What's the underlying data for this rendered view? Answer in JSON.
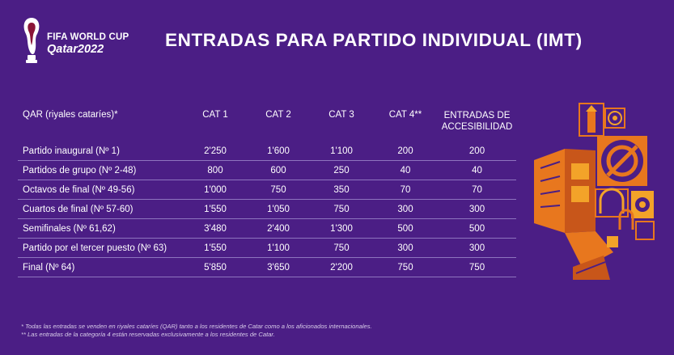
{
  "logo": {
    "line1": "FIFA WORLD CUP",
    "line2": "Qatar2022"
  },
  "title": "ENTRADAS PARA PARTIDO INDIVIDUAL (IMT)",
  "table": {
    "headers": [
      "QAR (riyales cataríes)*",
      "CAT 1",
      "CAT 2",
      "CAT 3",
      "CAT 4**"
    ],
    "acc_header": [
      "ENTRADAS DE",
      "ACCESIBILIDAD"
    ],
    "rows": [
      {
        "label": "Partido inaugural  (Nº 1)",
        "values": [
          "2'250",
          "1'600",
          "1'100",
          "200",
          "200"
        ]
      },
      {
        "label": "Partidos de grupo (Nº 2-48)",
        "values": [
          "800",
          "600",
          "250",
          "40",
          "40"
        ]
      },
      {
        "label": "Octavos de final (Nº 49-56)",
        "values": [
          "1'000",
          "750",
          "350",
          "70",
          "70"
        ]
      },
      {
        "label": "Cuartos de final (Nº 57-60)",
        "values": [
          "1'550",
          "1'050",
          "750",
          "300",
          "300"
        ]
      },
      {
        "label": "Semifinales (Nº 61,62)",
        "values": [
          "3'480",
          "2'400",
          "1'300",
          "500",
          "500"
        ]
      },
      {
        "label": "Partido por el tercer puesto (Nº 63)",
        "values": [
          "1'550",
          "1'100",
          "750",
          "300",
          "300"
        ]
      },
      {
        "label": "Final (Nº 64)",
        "values": [
          "5'850",
          "3'650",
          "2'200",
          "750",
          "750"
        ]
      }
    ]
  },
  "footnotes": [
    "* Todas las entradas se venden en riyales cataríes (QAR) tanto a los residentes de Catar como a los aficionados internacionales.",
    "** Las entradas de la categoría 4 están reservadas exclusivamente a los residentes de Catar."
  ],
  "colors": {
    "background": "#4b1e85",
    "accent_orange": "#e8771e",
    "accent_yellow": "#f3a329",
    "divider": "#8e74bf"
  }
}
